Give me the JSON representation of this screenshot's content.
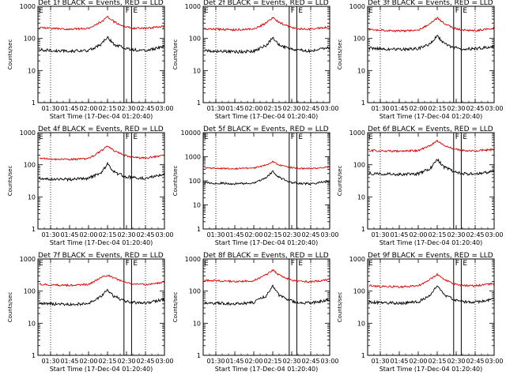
{
  "figure": {
    "xlabel": "Start Time (17-Dec-04 01:20:40)",
    "ylabel": "Counts/sec"
  },
  "colors": {
    "events": "#000000",
    "lld": "#e00000",
    "axes": "#000000"
  },
  "chart_data": [
    {
      "type": "line",
      "title": "Det 1f BLACK = Events, RED = LLD",
      "xlabel": "Start Time (17-Dec-04 01:20:40)",
      "ylabel": "Counts/sec",
      "yscale": "log",
      "ylim": [
        1,
        1000
      ],
      "yticks": [
        "1",
        "10",
        "100",
        "1000"
      ],
      "x_ticks": [
        "01:30",
        "01:45",
        "02:00",
        "02:15",
        "02:30",
        "02:45",
        "03:00"
      ],
      "markers": [
        {
          "label": "F",
          "x": "02:28"
        },
        {
          "label": "E",
          "x": "02:34"
        }
      ],
      "x": [
        "01:21",
        "01:30",
        "01:45",
        "02:00",
        "02:10",
        "02:15",
        "02:20",
        "02:28",
        "02:34",
        "02:45",
        "03:00"
      ],
      "series": [
        {
          "name": "Events",
          "color": "#000000",
          "values": [
            45,
            42,
            40,
            42,
            65,
            110,
            65,
            50,
            45,
            42,
            55
          ]
        },
        {
          "name": "LLD",
          "color": "#e00000",
          "values": [
            215,
            205,
            195,
            205,
            330,
            470,
            330,
            240,
            210,
            205,
            240
          ]
        }
      ]
    },
    {
      "type": "line",
      "title": "Det 2f BLACK = Events, RED = LLD",
      "xlabel": "Start Time (17-Dec-04 01:20:40)",
      "ylabel": "Counts/sec",
      "yscale": "log",
      "ylim": [
        1,
        1000
      ],
      "yticks": [
        "1",
        "10",
        "100",
        "1000"
      ],
      "x_ticks": [
        "01:30",
        "01:45",
        "02:00",
        "02:15",
        "02:30",
        "02:45",
        "03:00"
      ],
      "markers": [
        {
          "label": "F",
          "x": "02:28"
        },
        {
          "label": "E",
          "x": "02:34"
        }
      ],
      "x": [
        "01:21",
        "01:30",
        "01:45",
        "02:00",
        "02:10",
        "02:15",
        "02:20",
        "02:28",
        "02:34",
        "02:45",
        "03:00"
      ],
      "series": [
        {
          "name": "Events",
          "color": "#000000",
          "values": [
            42,
            40,
            38,
            40,
            62,
            105,
            62,
            48,
            44,
            40,
            52
          ]
        },
        {
          "name": "LLD",
          "color": "#e00000",
          "values": [
            200,
            195,
            185,
            195,
            310,
            450,
            320,
            230,
            200,
            195,
            230
          ]
        }
      ]
    },
    {
      "type": "line",
      "title": "Det 3f BLACK = Events, RED = LLD",
      "xlabel": "Start Time (17-Dec-04 01:20:40)",
      "ylabel": "Counts/sec",
      "yscale": "log",
      "ylim": [
        1,
        1000
      ],
      "yticks": [
        "1",
        "10",
        "100",
        "1000"
      ],
      "x_ticks": [
        "01:30",
        "01:45",
        "02:00",
        "02:15",
        "02:30",
        "02:45",
        "03:00"
      ],
      "markers": [
        {
          "label": "F",
          "x": "02:28"
        },
        {
          "label": "E",
          "x": "02:34"
        }
      ],
      "x": [
        "01:21",
        "01:30",
        "01:45",
        "02:00",
        "02:10",
        "02:15",
        "02:20",
        "02:28",
        "02:34",
        "02:45",
        "03:00"
      ],
      "series": [
        {
          "name": "Events",
          "color": "#000000",
          "values": [
            50,
            48,
            45,
            48,
            70,
            120,
            70,
            52,
            48,
            47,
            58
          ]
        },
        {
          "name": "LLD",
          "color": "#e00000",
          "values": [
            190,
            180,
            170,
            180,
            300,
            440,
            300,
            210,
            185,
            175,
            210
          ]
        }
      ]
    },
    {
      "type": "line",
      "title": "Det 4f BLACK = Events, RED = LLD",
      "xlabel": "Start Time (17-Dec-04 01:20:40)",
      "ylabel": "Counts/sec",
      "yscale": "log",
      "ylim": [
        1,
        1000
      ],
      "yticks": [
        "1",
        "10",
        "100",
        "1000"
      ],
      "x_ticks": [
        "01:30",
        "01:45",
        "02:00",
        "02:15",
        "02:30",
        "02:45",
        "03:00"
      ],
      "markers": [
        {
          "label": "F",
          "x": "02:28"
        },
        {
          "label": "E",
          "x": "02:34"
        }
      ],
      "x": [
        "01:21",
        "01:30",
        "01:45",
        "02:00",
        "02:10",
        "02:15",
        "02:20",
        "02:28",
        "02:34",
        "02:45",
        "03:00"
      ],
      "series": [
        {
          "name": "Events",
          "color": "#000000",
          "values": [
            38,
            36,
            35,
            38,
            58,
            105,
            60,
            44,
            40,
            38,
            50
          ]
        },
        {
          "name": "LLD",
          "color": "#e00000",
          "values": [
            160,
            150,
            145,
            155,
            270,
            390,
            270,
            200,
            170,
            160,
            200
          ]
        }
      ]
    },
    {
      "type": "line",
      "title": "Det 5f BLACK = Events, RED = LLD",
      "xlabel": "Start Time (17-Dec-04 01:20:40)",
      "ylabel": "Counts/sec",
      "yscale": "log",
      "ylim": [
        1,
        10000
      ],
      "yticks": [
        "1",
        "10",
        "100",
        "1000",
        "10000"
      ],
      "x_ticks": [
        "01:30",
        "01:45",
        "02:00",
        "02:15",
        "02:30",
        "02:45",
        "03:00"
      ],
      "markers": [
        {
          "label": "F",
          "x": "02:28"
        },
        {
          "label": "E",
          "x": "02:34"
        }
      ],
      "x": [
        "01:21",
        "01:30",
        "01:45",
        "02:00",
        "02:10",
        "02:15",
        "02:20",
        "02:28",
        "02:34",
        "02:45",
        "03:00"
      ],
      "series": [
        {
          "name": "Events",
          "color": "#000000",
          "values": [
            85,
            80,
            75,
            80,
            140,
            250,
            140,
            90,
            80,
            75,
            95
          ]
        },
        {
          "name": "LLD",
          "color": "#e00000",
          "values": [
            350,
            330,
            320,
            340,
            450,
            620,
            450,
            370,
            330,
            320,
            380
          ]
        }
      ]
    },
    {
      "type": "line",
      "title": "Det 6f BLACK = Events, RED = LLD",
      "xlabel": "Start Time (17-Dec-04 01:20:40)",
      "ylabel": "Counts/sec",
      "yscale": "log",
      "ylim": [
        1,
        1000
      ],
      "yticks": [
        "1",
        "10",
        "100",
        "1000"
      ],
      "x_ticks": [
        "01:30",
        "01:45",
        "02:00",
        "02:15",
        "02:30",
        "02:45",
        "03:00"
      ],
      "markers": [
        {
          "label": "F",
          "x": "02:28"
        },
        {
          "label": "E",
          "x": "02:34"
        }
      ],
      "x": [
        "01:21",
        "01:30",
        "01:45",
        "02:00",
        "02:10",
        "02:15",
        "02:20",
        "02:28",
        "02:34",
        "02:45",
        "03:00"
      ],
      "series": [
        {
          "name": "Events",
          "color": "#000000",
          "values": [
            55,
            52,
            50,
            52,
            80,
            150,
            85,
            62,
            55,
            50,
            62
          ]
        },
        {
          "name": "LLD",
          "color": "#e00000",
          "values": [
            280,
            270,
            265,
            275,
            400,
            560,
            400,
            310,
            280,
            270,
            300
          ]
        }
      ]
    },
    {
      "type": "line",
      "title": "Det 7f BLACK = Events, RED = LLD",
      "xlabel": "Start Time (17-Dec-04 01:20:40)",
      "ylabel": "Counts/sec",
      "yscale": "log",
      "ylim": [
        1,
        1000
      ],
      "yticks": [
        "1",
        "10",
        "100",
        "1000"
      ],
      "x_ticks": [
        "01:30",
        "01:45",
        "02:00",
        "02:15",
        "02:30",
        "02:45",
        "03:00"
      ],
      "markers": [
        {
          "label": "F",
          "x": "02:28"
        },
        {
          "label": "E",
          "x": "02:34"
        }
      ],
      "x": [
        "01:21",
        "01:30",
        "01:45",
        "02:00",
        "02:10",
        "02:15",
        "02:20",
        "02:28",
        "02:34",
        "02:45",
        "03:00"
      ],
      "series": [
        {
          "name": "Events",
          "color": "#000000",
          "values": [
            42,
            40,
            38,
            42,
            70,
            110,
            70,
            50,
            45,
            42,
            55
          ]
        },
        {
          "name": "LLD",
          "color": "#e00000",
          "values": [
            165,
            155,
            150,
            160,
            270,
            310,
            260,
            190,
            165,
            160,
            190
          ]
        }
      ]
    },
    {
      "type": "line",
      "title": "Det 8f BLACK = Events, RED = LLD",
      "xlabel": "Start Time (17-Dec-04 01:20:40)",
      "ylabel": "Counts/sec",
      "yscale": "log",
      "ylim": [
        1,
        1000
      ],
      "yticks": [
        "1",
        "10",
        "100",
        "1000"
      ],
      "x_ticks": [
        "01:30",
        "01:45",
        "02:00",
        "02:15",
        "02:30",
        "02:45",
        "03:00"
      ],
      "markers": [
        {
          "label": "F",
          "x": "02:28"
        },
        {
          "label": "E",
          "x": "02:34"
        }
      ],
      "x": [
        "01:21",
        "01:30",
        "01:45",
        "02:00",
        "02:10",
        "02:15",
        "02:20",
        "02:28",
        "02:34",
        "02:45",
        "03:00"
      ],
      "series": [
        {
          "name": "Events",
          "color": "#000000",
          "values": [
            44,
            42,
            40,
            44,
            72,
            140,
            75,
            52,
            45,
            42,
            55
          ]
        },
        {
          "name": "LLD",
          "color": "#e00000",
          "values": [
            220,
            210,
            200,
            210,
            330,
            450,
            320,
            230,
            200,
            195,
            230
          ]
        }
      ]
    },
    {
      "type": "line",
      "title": "Det 9f BLACK = Events, RED = LLD",
      "xlabel": "Start Time (17-Dec-04 01:20:40)",
      "ylabel": "Counts/sec",
      "yscale": "log",
      "ylim": [
        1,
        1000
      ],
      "yticks": [
        "1",
        "10",
        "100",
        "1000"
      ],
      "x_ticks": [
        "01:30",
        "01:45",
        "02:00",
        "02:15",
        "02:30",
        "02:45",
        "03:00"
      ],
      "markers": [
        {
          "label": "F",
          "x": "02:28"
        },
        {
          "label": "E",
          "x": "02:34"
        }
      ],
      "x": [
        "01:21",
        "01:30",
        "01:45",
        "02:00",
        "02:10",
        "02:15",
        "02:20",
        "02:28",
        "02:34",
        "02:45",
        "03:00"
      ],
      "series": [
        {
          "name": "Events",
          "color": "#000000",
          "values": [
            46,
            44,
            42,
            46,
            75,
            150,
            78,
            55,
            48,
            45,
            57
          ]
        },
        {
          "name": "LLD",
          "color": "#e00000",
          "values": [
            150,
            140,
            135,
            145,
            240,
            330,
            240,
            170,
            150,
            145,
            170
          ]
        }
      ]
    }
  ]
}
